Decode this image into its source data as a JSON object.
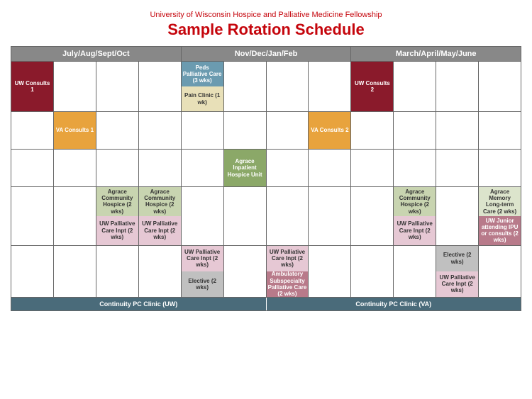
{
  "header": {
    "subtitle": "University of Wisconsin Hospice and Palliative Medicine Fellowship",
    "title": "Sample Rotation Schedule"
  },
  "months": [
    "July/Aug/Sept/Oct",
    "Nov/Dec/Jan/Feb",
    "March/April/May/June"
  ],
  "colors": {
    "uw_consults": {
      "bg": "#8a1a2b",
      "text": "#ffffff"
    },
    "va_consults": {
      "bg": "#e8a33d",
      "text": "#ffffff"
    },
    "peds": {
      "bg": "#6b9bb0",
      "text": "#ffffff"
    },
    "pain": {
      "bg": "#e8e0b8",
      "text": "#333333"
    },
    "agrace_inpt": {
      "bg": "#8ba868",
      "text": "#ffffff"
    },
    "agrace_comm": {
      "bg": "#c8d4b0",
      "text": "#333333"
    },
    "agrace_mem": {
      "bg": "#dce4cc",
      "text": "#333333"
    },
    "uw_pc_inpt": {
      "bg": "#e6c8d4",
      "text": "#333333"
    },
    "uw_junior": {
      "bg": "#b87a8a",
      "text": "#ffffff"
    },
    "elective": {
      "bg": "#c0c0c0",
      "text": "#333333"
    },
    "amb_sub": {
      "bg": "#b87a8a",
      "text": "#ffffff"
    }
  },
  "grid": [
    [
      {
        "label": "UW Consults 1",
        "colorKey": "uw_consults",
        "size": "full"
      },
      null,
      null,
      null,
      {
        "split": [
          {
            "label": "Peds Palliative Care (3 wks)",
            "colorKey": "peds"
          },
          {
            "label": "Pain Clinic (1 wk)",
            "colorKey": "pain"
          }
        ]
      },
      null,
      null,
      null,
      {
        "label": "UW Consults 2",
        "colorKey": "uw_consults",
        "size": "full"
      },
      null,
      null,
      null
    ],
    [
      null,
      {
        "label": "VA Consults 1",
        "colorKey": "va_consults",
        "size": "full"
      },
      null,
      null,
      null,
      null,
      null,
      {
        "label": "VA Consults 2",
        "colorKey": "va_consults",
        "size": "full"
      },
      null,
      null,
      null,
      null
    ],
    [
      null,
      null,
      null,
      null,
      null,
      {
        "label": "Agrace Inpatient Hospice Unit",
        "colorKey": "agrace_inpt",
        "size": "full"
      },
      null,
      null,
      null,
      null,
      null,
      null
    ],
    [
      null,
      null,
      {
        "split": [
          {
            "label": "Agrace Community Hospice (2 wks)",
            "colorKey": "agrace_comm"
          },
          {
            "label": "UW Palliative Care Inpt (2 wks)",
            "colorKey": "uw_pc_inpt"
          }
        ]
      },
      {
        "split": [
          {
            "label": "Agrace Community Hospice (2 wks)",
            "colorKey": "agrace_comm"
          },
          {
            "label": "UW Palliative Care Inpt (2 wks)",
            "colorKey": "uw_pc_inpt"
          }
        ]
      },
      null,
      null,
      null,
      null,
      null,
      {
        "split": [
          {
            "label": "Agrace Community Hospice (2 wks)",
            "colorKey": "agrace_comm"
          },
          {
            "label": "UW Palliative Care Inpt (2 wks)",
            "colorKey": "uw_pc_inpt"
          }
        ]
      },
      null,
      {
        "split": [
          {
            "label": "Agrace Memory Long-term Care (2 wks)",
            "colorKey": "agrace_mem"
          },
          {
            "label": "UW Junior attending IPU or consults (2 wks)",
            "colorKey": "uw_junior"
          }
        ]
      }
    ],
    [
      null,
      null,
      null,
      null,
      {
        "split": [
          {
            "label": "UW Palliative Care Inpt (2 wks)",
            "colorKey": "uw_pc_inpt"
          },
          {
            "label": "Elective (2 wks)",
            "colorKey": "elective"
          }
        ]
      },
      null,
      {
        "split": [
          {
            "label": "UW Palliative Care Inpt (2 wks)",
            "colorKey": "uw_pc_inpt"
          },
          {
            "label": "Ambulatory Subspecialty Palliative Care (2 wks)",
            "colorKey": "amb_sub"
          }
        ]
      },
      null,
      null,
      null,
      {
        "split": [
          {
            "label": "Elective (2 wks)",
            "colorKey": "elective"
          },
          {
            "label": "UW Palliative Care Inpt (2 wks)",
            "colorKey": "uw_pc_inpt"
          }
        ]
      },
      null
    ]
  ],
  "tall_rows": [
    0,
    3,
    4
  ],
  "footer": [
    "Continuity PC Clinic (UW)",
    "Continuity PC Clinic (VA)"
  ]
}
